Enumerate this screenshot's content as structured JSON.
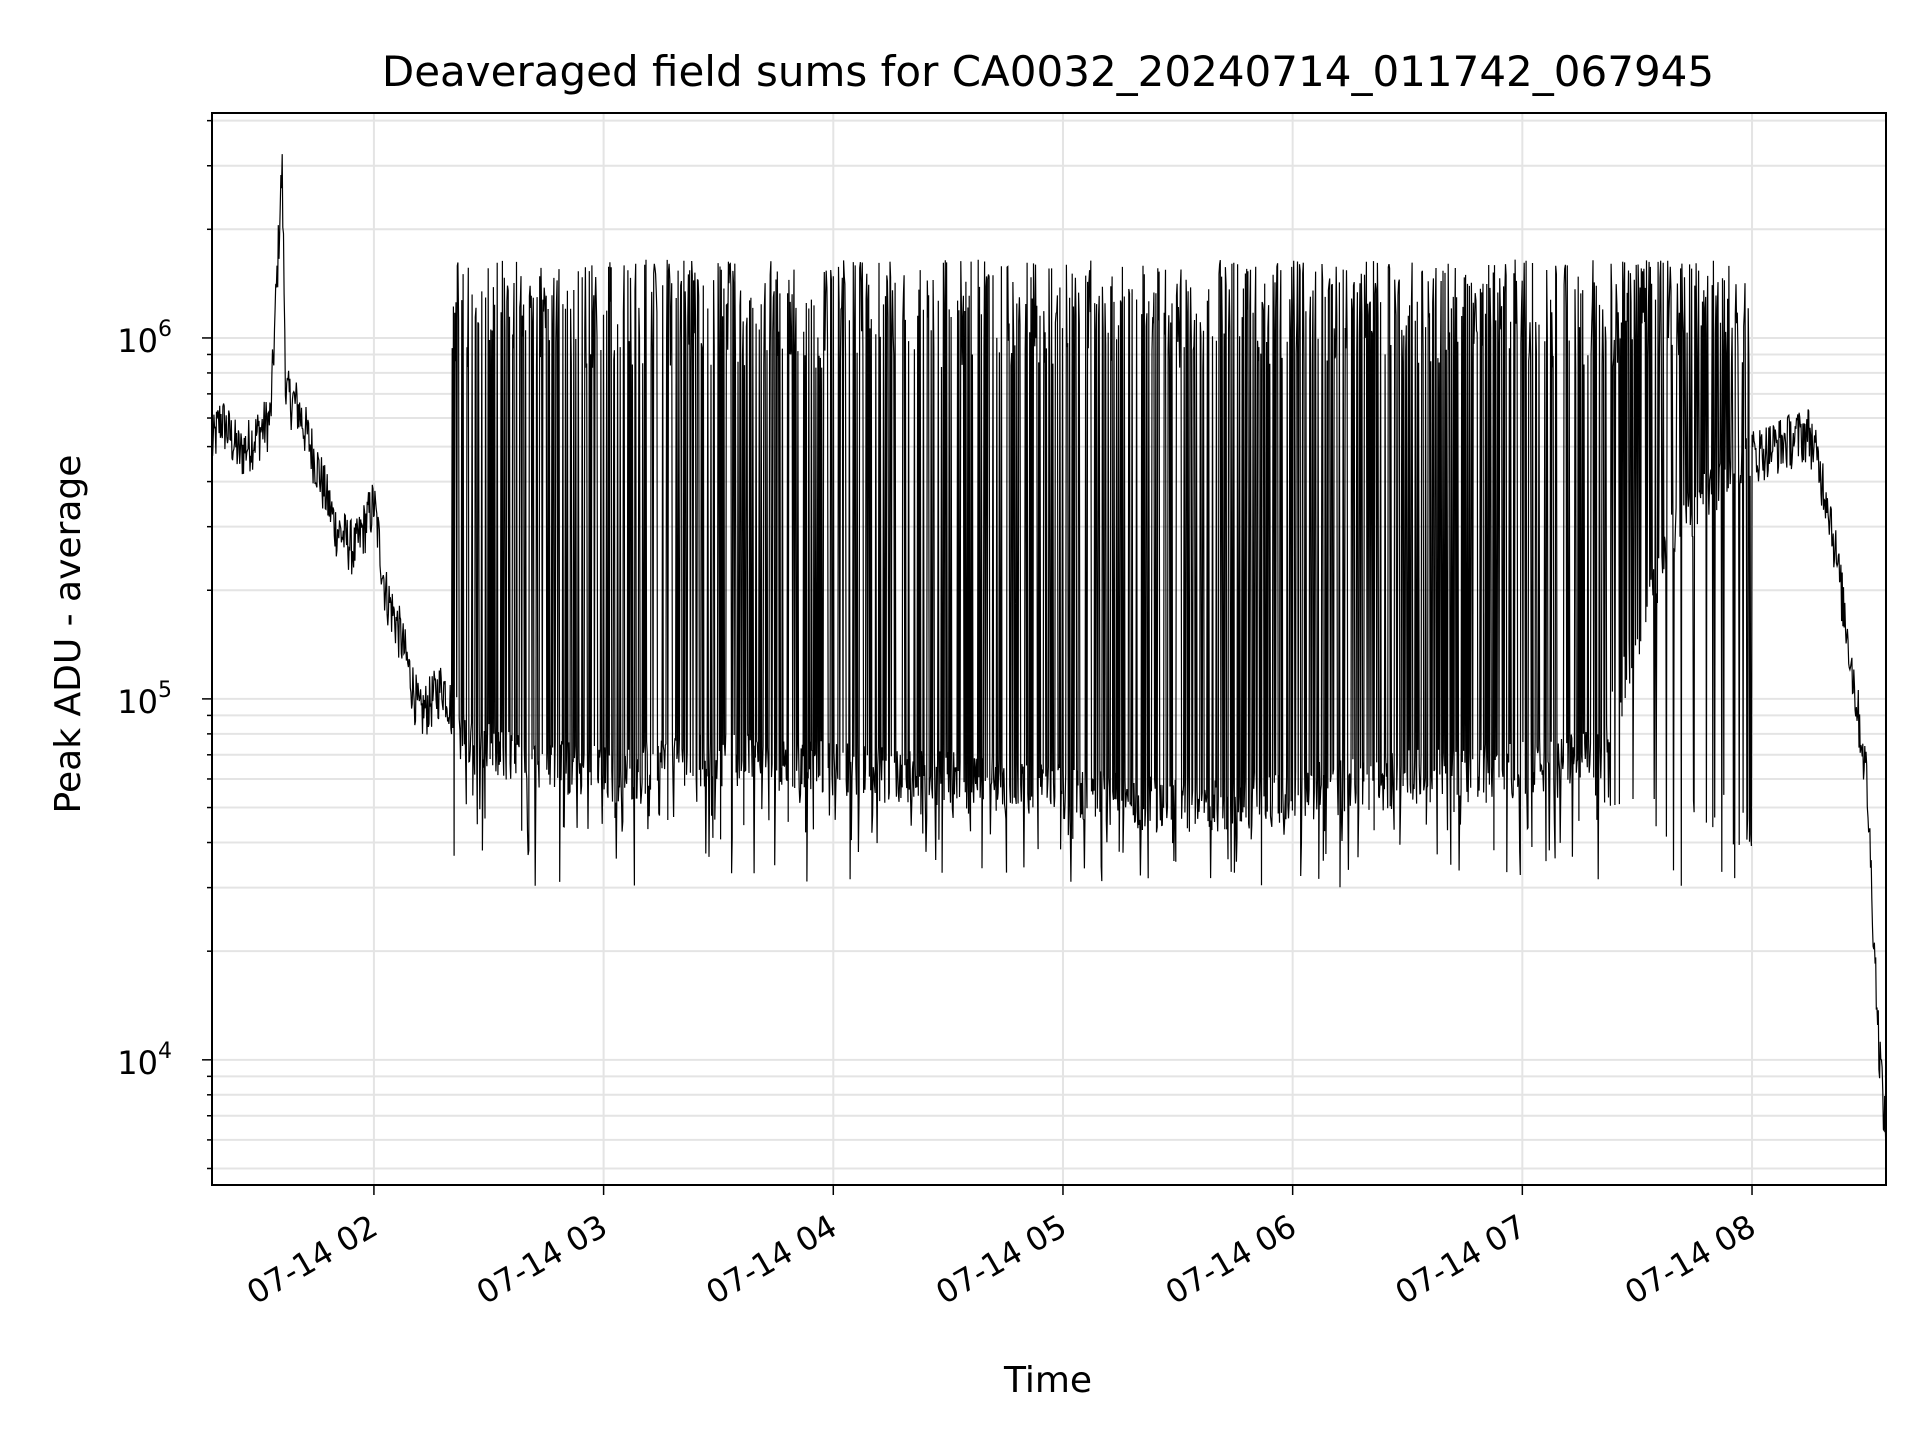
{
  "chart_data": {
    "type": "line",
    "title": "Deaveraged field sums for CA0032_20240714_011742_067945",
    "xlabel": "Time",
    "ylabel": "Peak ADU - average",
    "y_scale": "log",
    "grid": true,
    "x_range": [
      "2024-07-14 01:17:42",
      "2024-07-14 08:35:00"
    ],
    "ylim": [
      4500,
      4200000
    ],
    "x_ticks": [
      "07-14 02",
      "07-14 03",
      "07-14 04",
      "07-14 05",
      "07-14 06",
      "07-14 07",
      "07-14 08"
    ],
    "y_ticks": [
      {
        "base": "10",
        "exp": "4",
        "value": 10000
      },
      {
        "base": "10",
        "exp": "5",
        "value": 100000
      },
      {
        "base": "10",
        "exp": "6",
        "value": 1000000
      }
    ],
    "series": [
      {
        "color": "#000000",
        "points": [
          [
            "2024-07-14 01:17:42",
            500000
          ],
          [
            "2024-07-14 01:20:00",
            600000
          ],
          [
            "2024-07-14 01:25:00",
            480000
          ],
          [
            "2024-07-14 01:30:00",
            550000
          ],
          [
            "2024-07-14 01:33:00",
            600000
          ],
          [
            "2024-07-14 01:36:00",
            3000000
          ],
          [
            "2024-07-14 01:37:00",
            700000
          ],
          [
            "2024-07-14 01:40:00",
            650000
          ],
          [
            "2024-07-14 01:45:00",
            450000
          ],
          [
            "2024-07-14 01:50:00",
            300000
          ],
          [
            "2024-07-14 01:55:00",
            260000
          ],
          [
            "2024-07-14 02:00:00",
            350000
          ],
          [
            "2024-07-14 02:03:00",
            200000
          ],
          [
            "2024-07-14 02:07:00",
            150000
          ],
          [
            "2024-07-14 02:12:00",
            90000
          ],
          [
            "2024-07-14 02:18:00",
            110000
          ],
          [
            "2024-07-14 02:24:00",
            75000
          ],
          [
            "2024-07-14 02:35:00",
            70000
          ],
          [
            "2024-07-14 02:50:00",
            65000
          ],
          [
            "2024-07-14 03:05:00",
            62000
          ],
          [
            "2024-07-14 03:20:00",
            70000
          ],
          [
            "2024-07-14 03:40:00",
            68000
          ],
          [
            "2024-07-14 04:00:00",
            65000
          ],
          [
            "2024-07-14 04:20:00",
            62000
          ],
          [
            "2024-07-14 04:40:00",
            60000
          ],
          [
            "2024-07-14 05:00:00",
            55000
          ],
          [
            "2024-07-14 05:20:00",
            52000
          ],
          [
            "2024-07-14 05:40:00",
            52000
          ],
          [
            "2024-07-14 06:00:00",
            55000
          ],
          [
            "2024-07-14 06:20:00",
            60000
          ],
          [
            "2024-07-14 06:40:00",
            62000
          ],
          [
            "2024-07-14 07:00:00",
            65000
          ],
          [
            "2024-07-14 07:20:00",
            70000
          ],
          [
            "2024-07-14 07:40:00",
            300000
          ],
          [
            "2024-07-14 07:55:00",
            450000
          ],
          [
            "2024-07-14 08:05:00",
            500000
          ],
          [
            "2024-07-14 08:15:00",
            550000
          ],
          [
            "2024-07-14 08:20:00",
            350000
          ],
          [
            "2024-07-14 08:25:00",
            150000
          ],
          [
            "2024-07-14 08:30:00",
            60000
          ],
          [
            "2024-07-14 08:33:00",
            12000
          ],
          [
            "2024-07-14 08:35:00",
            6000
          ]
        ],
        "oscillation": {
          "range": [
            "2024-07-14 02:20:00",
            "2024-07-14 08:00:00"
          ],
          "high": 1500000,
          "low": 50000
        }
      }
    ]
  }
}
